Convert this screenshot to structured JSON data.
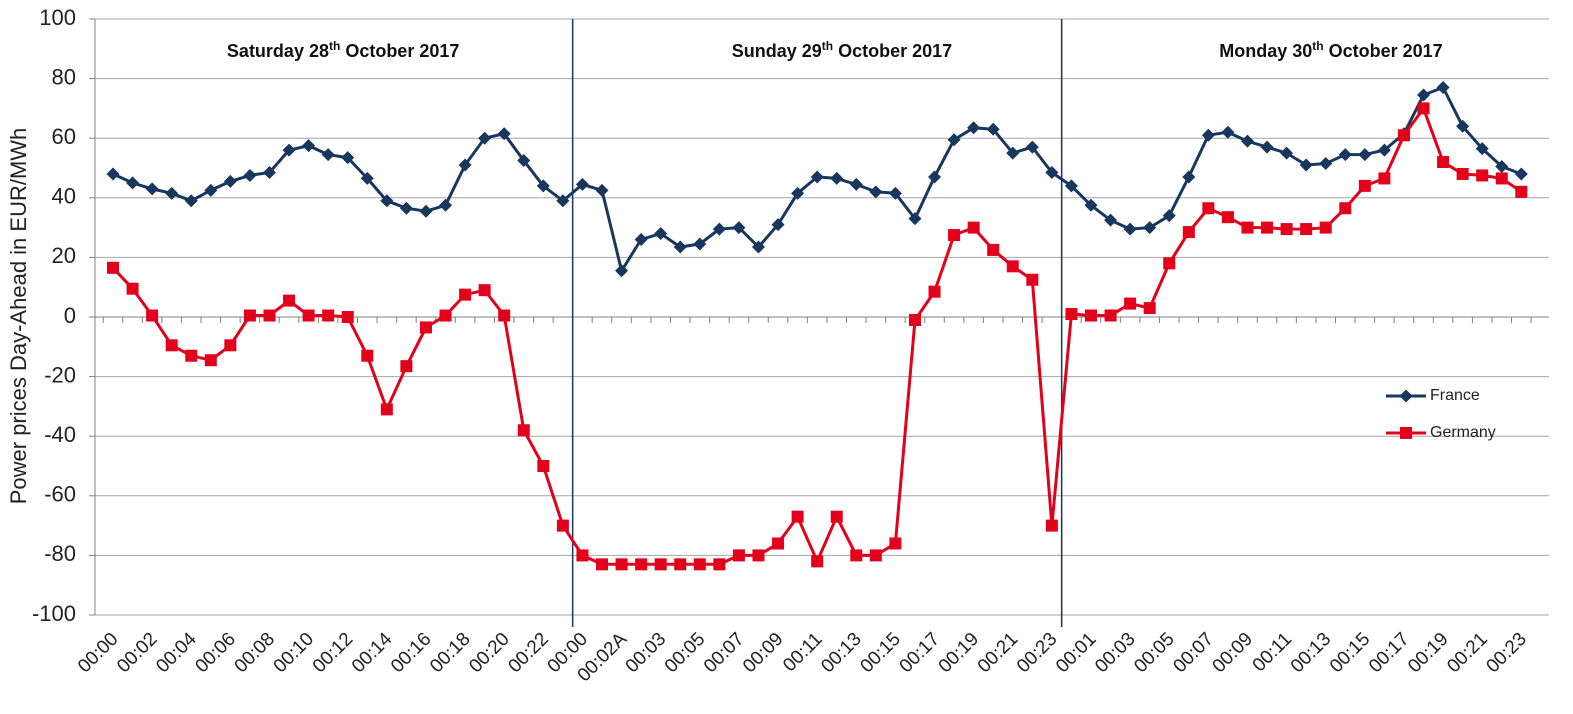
{
  "chart_data": {
    "type": "line",
    "ylabel": "Power prices Day-Ahead in EUR/MWh",
    "xlabel": "",
    "ylim": [
      -100,
      100
    ],
    "yticks": [
      -100,
      -80,
      -60,
      -40,
      -20,
      0,
      20,
      40,
      60,
      80,
      100
    ],
    "grid": true,
    "legend_position": "right",
    "x_tick_labels": [
      "00:00",
      "00:02",
      "00:04",
      "00:06",
      "00:08",
      "00:10",
      "00:12",
      "00:14",
      "00:16",
      "00:18",
      "00:20",
      "00:22",
      "00:00",
      "00:02A",
      "00:03",
      "00:05",
      "00:07",
      "00:09",
      "00:11",
      "00:13",
      "00:15",
      "00:17",
      "00:19",
      "00:21",
      "00:23",
      "00:01",
      "00:03",
      "00:05",
      "00:07",
      "00:09",
      "00:11",
      "00:13",
      "00:15",
      "00:17",
      "00:19",
      "00:21",
      "00:23"
    ],
    "day_labels": [
      {
        "text": "Saturday 28",
        "sup": "th",
        "rest": " October 2017",
        "hour_index": 11
      },
      {
        "text": "Sunday 29",
        "sup": "th",
        "rest": " October 2017",
        "hour_index": 36.5
      },
      {
        "text": "Monday 30",
        "sup": "th",
        "rest": " October 2017",
        "hour_index": 61.5
      }
    ],
    "day_separators": [
      23.5,
      48.5
    ],
    "series": [
      {
        "name": "France",
        "color": "#17375e",
        "marker": "diamond",
        "values": [
          48,
          45,
          43,
          41.5,
          39,
          42.5,
          45.5,
          47.5,
          48.5,
          56,
          57.5,
          54.5,
          53.5,
          46.5,
          39,
          36.5,
          35.5,
          37.5,
          51,
          60,
          61.5,
          52.5,
          44,
          39,
          44.5,
          42.5,
          15.5,
          26,
          28,
          23.5,
          24.5,
          29.5,
          30,
          23.5,
          31,
          41.5,
          47,
          46.5,
          44.5,
          42,
          41.5,
          33,
          47,
          59.5,
          63.5,
          63,
          55,
          57,
          48.5,
          44,
          37.5,
          32.5,
          29.5,
          30,
          34,
          47,
          61,
          62,
          59,
          57,
          55,
          51,
          51.5,
          54.5,
          54.5,
          56,
          61.5,
          74.5,
          77,
          64,
          56.5,
          50.5,
          48
        ]
      },
      {
        "name": "Germany",
        "color": "#e3001b",
        "marker": "square",
        "values": [
          16.5,
          9.5,
          0.5,
          -9.5,
          -13,
          -14.5,
          -9.5,
          0.5,
          0.5,
          5.5,
          0.5,
          0.5,
          0,
          -13,
          -31,
          -16.5,
          -3.5,
          0.5,
          7.5,
          9,
          0.5,
          -38,
          -50,
          -70,
          -80,
          -83,
          -83,
          -83,
          -83,
          -83,
          -83,
          -83,
          -80,
          -80,
          -76,
          -67,
          -82,
          -67,
          -80,
          -80,
          -76,
          -1,
          8.5,
          27.5,
          30,
          22.5,
          17,
          12.5,
          -70,
          1,
          0.5,
          0.5,
          4.5,
          3,
          18,
          28.5,
          36.5,
          33.5,
          30,
          30,
          29.5,
          29.5,
          30,
          36.5,
          44,
          46.5,
          61,
          70,
          52,
          48,
          47.5,
          46.5,
          42
        ]
      }
    ]
  }
}
